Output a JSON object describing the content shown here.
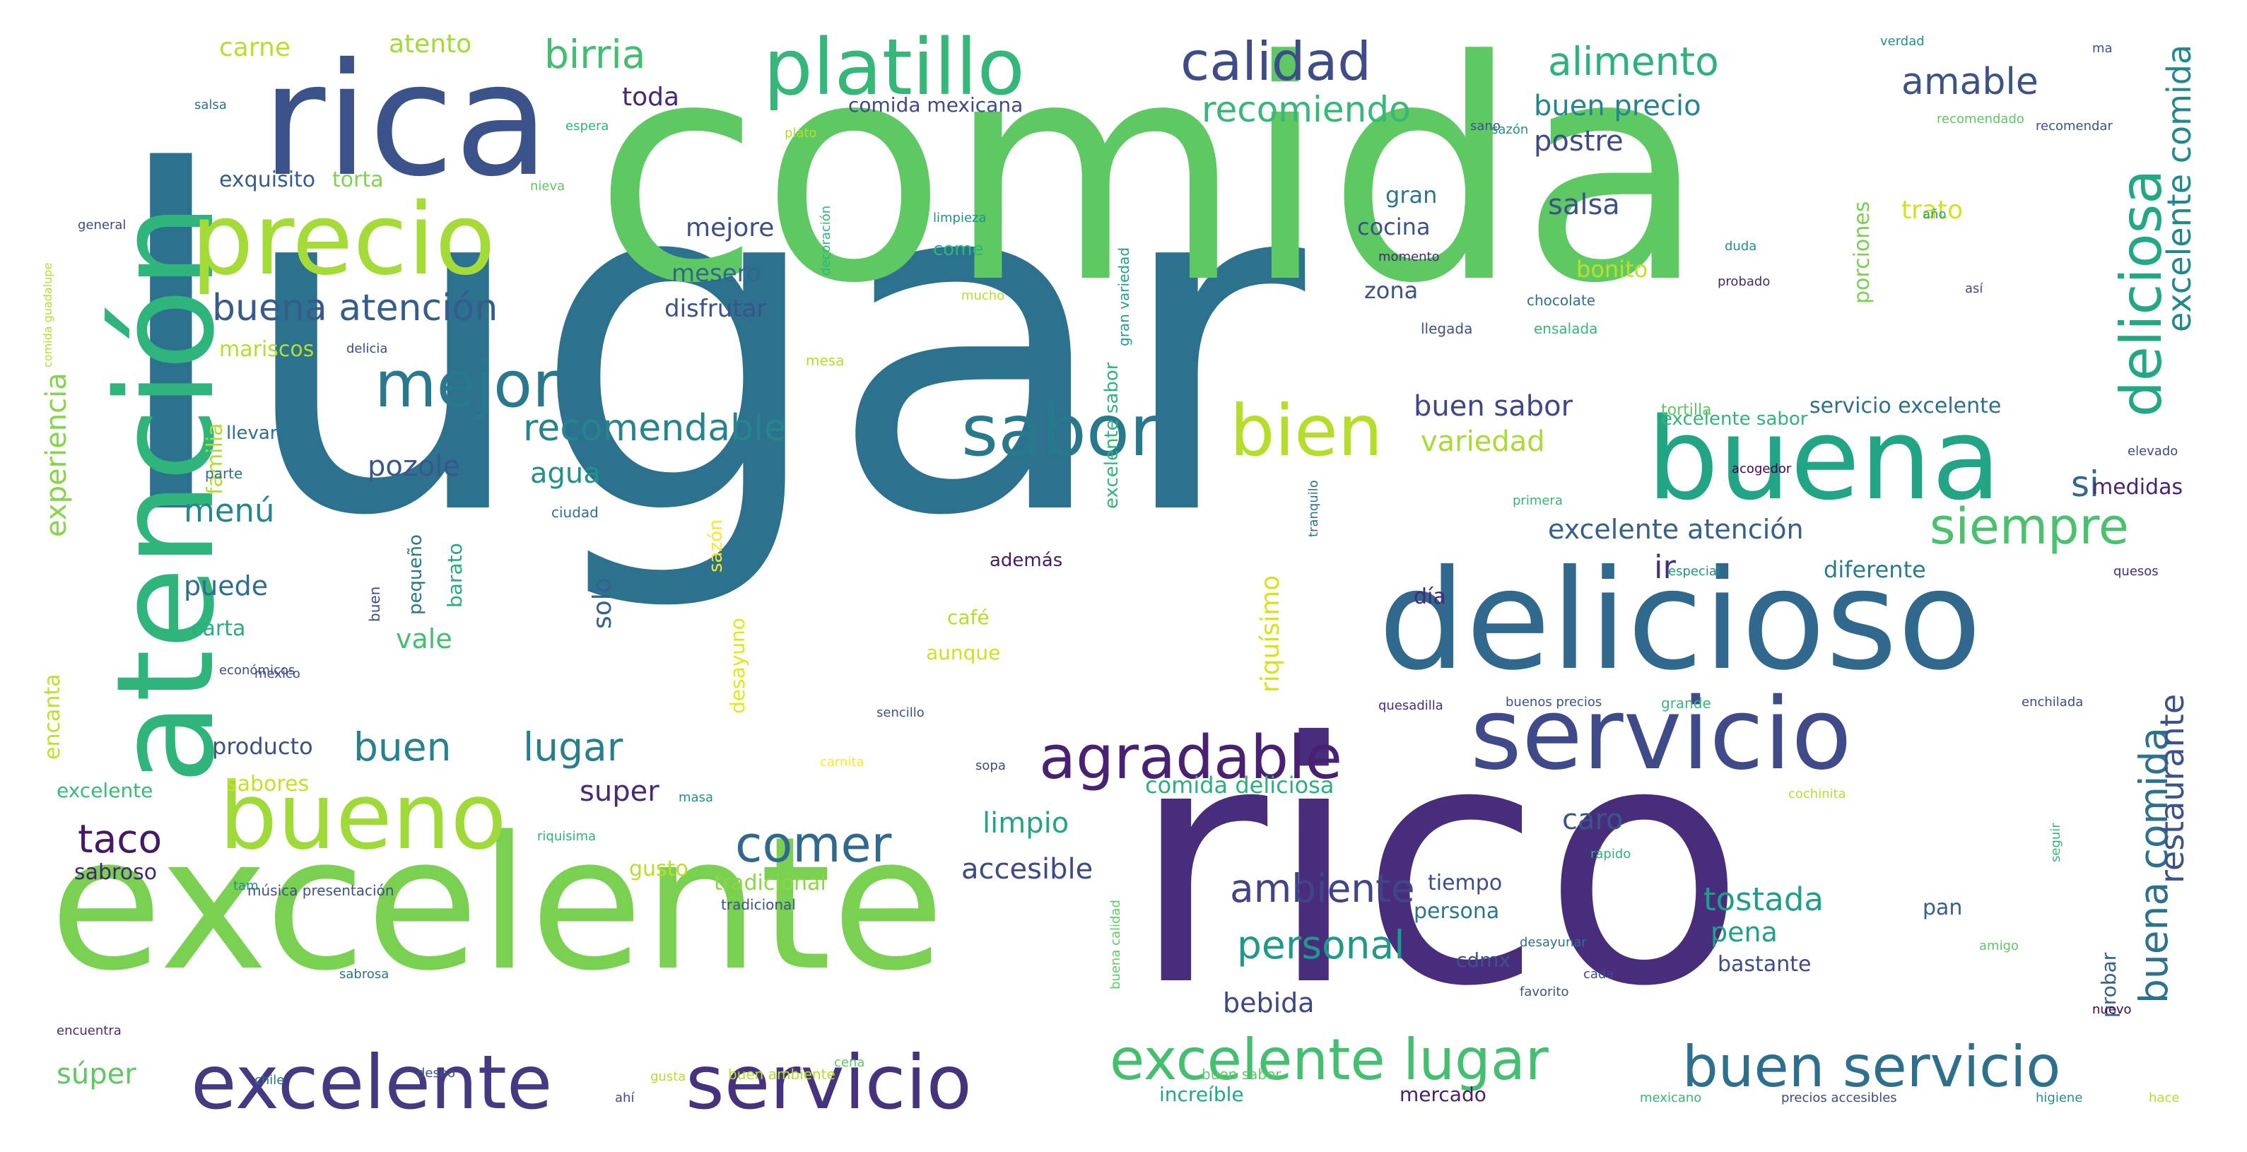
{
  "words": [
    {
      "text": "lugar",
      "color": "#2c728e"
    },
    {
      "text": "comida",
      "color": "#5ec962"
    },
    {
      "text": "rico",
      "color": "#472d7b"
    },
    {
      "text": "excelente",
      "color": "#7ad151"
    },
    {
      "text": "delicioso",
      "color": "#31688e"
    },
    {
      "text": "rica",
      "color": "#3b528b"
    },
    {
      "text": "atención",
      "color": "#2fb47c"
    },
    {
      "text": "buena",
      "color": "#21a585"
    },
    {
      "text": "servicio",
      "color": "#3e4a89"
    },
    {
      "text": "precio",
      "color": "#a5db36"
    },
    {
      "text": "platillo",
      "color": "#35b779"
    },
    {
      "text": "bueno",
      "color": "#a0da39"
    },
    {
      "text": "excelente",
      "color": "#443a83"
    },
    {
      "text": "servicio",
      "color": "#46327e"
    },
    {
      "text": "sabor",
      "color": "#29798e"
    },
    {
      "text": "bien",
      "color": "#b5de2b"
    },
    {
      "text": "mejor",
      "color": "#2a788e"
    },
    {
      "text": "agradable",
      "color": "#482173"
    },
    {
      "text": "excelente lugar",
      "color": "#44bf70"
    },
    {
      "text": "buen servicio",
      "color": "#2d708e"
    },
    {
      "text": "calidad",
      "color": "#3e4c8a"
    },
    {
      "text": "deliciosa",
      "color": "#22a884"
    },
    {
      "text": "buena comida",
      "color": "#2c728e"
    },
    {
      "text": "siempre",
      "color": "#4ac16d"
    },
    {
      "text": "buena atención",
      "color": "#365c8d"
    },
    {
      "text": "recomendable",
      "color": "#25848e"
    },
    {
      "text": "comer",
      "color": "#31688e"
    },
    {
      "text": "ambiente",
      "color": "#414487"
    },
    {
      "text": "personal",
      "color": "#1f9a8a"
    },
    {
      "text": "buen",
      "color": "#26828e"
    },
    {
      "text": "lugar",
      "color": "#277f8e"
    },
    {
      "text": "taco",
      "color": "#481769"
    },
    {
      "text": "birria",
      "color": "#42be71"
    },
    {
      "text": "alimento",
      "color": "#2db27d"
    },
    {
      "text": "recomiendo",
      "color": "#37b878"
    },
    {
      "text": "amable",
      "color": "#3b528b"
    },
    {
      "text": "excelente comida",
      "color": "#23888e"
    },
    {
      "text": "restaurante",
      "color": "#3b528b"
    },
    {
      "text": "experiencia",
      "color": "#86d549"
    },
    {
      "text": "buen precio",
      "color": "#25858e"
    },
    {
      "text": "postre",
      "color": "#3e4a89"
    },
    {
      "text": "buen sabor",
      "color": "#404688"
    },
    {
      "text": "variedad",
      "color": "#a8db34"
    },
    {
      "text": "excelente atención",
      "color": "#355f8d"
    },
    {
      "text": "salsa",
      "color": "#3b528b"
    },
    {
      "text": "menú",
      "color": "#24878e"
    },
    {
      "text": "pozole",
      "color": "#38588c"
    },
    {
      "text": "agua",
      "color": "#21918c"
    },
    {
      "text": "si",
      "color": "#31688e"
    },
    {
      "text": "ir",
      "color": "#472f7d"
    },
    {
      "text": "super",
      "color": "#482878"
    },
    {
      "text": "limpio",
      "color": "#21a685"
    },
    {
      "text": "accesible",
      "color": "#3e4989"
    },
    {
      "text": "tostada",
      "color": "#1f9e89"
    },
    {
      "text": "pena",
      "color": "#1fa088"
    },
    {
      "text": "caro",
      "color": "#39568c"
    },
    {
      "text": "bebida",
      "color": "#3f4788"
    },
    {
      "text": "súper",
      "color": "#5ec962"
    },
    {
      "text": "carne",
      "color": "#b8de29"
    },
    {
      "text": "atento",
      "color": "#a2da37"
    },
    {
      "text": "toda",
      "color": "#482677"
    },
    {
      "text": "mejore",
      "color": "#3c4f8a"
    },
    {
      "text": "mesero",
      "color": "#31678e"
    },
    {
      "text": "disfrutar",
      "color": "#3b528b"
    },
    {
      "text": "exquisito",
      "color": "#365d8d"
    },
    {
      "text": "torta",
      "color": "#7fd34e"
    },
    {
      "text": "puede",
      "color": "#2e6e8e"
    },
    {
      "text": "vale",
      "color": "#44bf70"
    },
    {
      "text": "solo",
      "color": "#33638d"
    },
    {
      "text": "riquísimo",
      "color": "#d8e219"
    },
    {
      "text": "producto",
      "color": "#3d4e8a"
    },
    {
      "text": "sabores",
      "color": "#c8e020"
    },
    {
      "text": "comida deliciosa",
      "color": "#2ab07f"
    },
    {
      "text": "comida mexicana",
      "color": "#3e4a89"
    },
    {
      "text": "gran",
      "color": "#2a768e"
    },
    {
      "text": "cocina",
      "color": "#3c508b"
    },
    {
      "text": "zona",
      "color": "#3b528b"
    },
    {
      "text": "bonito",
      "color": "#bddf26"
    },
    {
      "text": "trato",
      "color": "#d2e21b"
    },
    {
      "text": "porciones",
      "color": "#7ad151"
    },
    {
      "text": "diferente",
      "color": "#287d8e"
    },
    {
      "text": "servicio excelente",
      "color": "#2e6f8e"
    },
    {
      "text": "medidas",
      "color": "#482475"
    },
    {
      "text": "mariscos",
      "color": "#b4de2c"
    },
    {
      "text": "familia",
      "color": "#b0dd2f"
    },
    {
      "text": "carta",
      "color": "#27ad81"
    },
    {
      "text": "encanta",
      "color": "#c0df25"
    },
    {
      "text": "excelente",
      "color": "#3aba76"
    },
    {
      "text": "sabroso",
      "color": "#482475"
    },
    {
      "text": "gusto",
      "color": "#bade28"
    },
    {
      "text": "tradicional",
      "color": "#8bd646"
    },
    {
      "text": "tiempo",
      "color": "#3e4c8a"
    },
    {
      "text": "persona",
      "color": "#2b758e"
    },
    {
      "text": "pan",
      "color": "#34608d"
    },
    {
      "text": "bastante",
      "color": "#3d4d8a"
    },
    {
      "text": "probar",
      "color": "#34618d"
    },
    {
      "text": "mercado",
      "color": "#482071"
    },
    {
      "text": "increíble",
      "color": "#22a785"
    },
    {
      "text": "cdmx",
      "color": "#3b528b"
    },
    {
      "text": "café",
      "color": "#b5de2b"
    },
    {
      "text": "aunque",
      "color": "#d0e11c"
    },
    {
      "text": "desayuno",
      "color": "#e5e419"
    },
    {
      "text": "barato",
      "color": "#25ab82"
    },
    {
      "text": "pequeño",
      "color": "#2a778e"
    },
    {
      "text": "además",
      "color": "#481a6c"
    },
    {
      "text": "día",
      "color": "#482878"
    },
    {
      "text": "come",
      "color": "#31b57b"
    },
    {
      "text": "llevar",
      "color": "#2e6e8e"
    },
    {
      "text": "sazón",
      "color": "#fde725"
    },
    {
      "text": "buen",
      "color": "#3e4a89"
    },
    {
      "text": "ciudad",
      "color": "#2c728e"
    },
    {
      "text": "música presentación",
      "color": "#3b528b"
    },
    {
      "text": "tradicional",
      "color": "#3b528b"
    },
    {
      "text": "buen sabor",
      "color": "#5ec962"
    },
    {
      "text": "parte",
      "color": "#2c728e"
    },
    {
      "text": "buen ambiente",
      "color": "#b5de2b"
    },
    {
      "text": "limpieza",
      "color": "#21918c"
    },
    {
      "text": "excelente sabor",
      "color": "#2fb47c"
    },
    {
      "text": "gran variedad",
      "color": "#1f9e89"
    },
    {
      "text": "chocolate",
      "color": "#2c728e"
    },
    {
      "text": "ensalada",
      "color": "#35b779"
    },
    {
      "text": "quesadilla",
      "color": "#472d7b"
    },
    {
      "text": "buenos precios",
      "color": "#3b528b"
    },
    {
      "text": "grande",
      "color": "#35b779"
    },
    {
      "text": "enchilada",
      "color": "#3e4a89"
    },
    {
      "text": "primera",
      "color": "#35b779"
    },
    {
      "text": "especial",
      "color": "#21918c"
    },
    {
      "text": "servicio",
      "color": "#2fb47c"
    },
    {
      "text": "elevado",
      "color": "#3e4a89"
    },
    {
      "text": "acogedor",
      "color": "#440154"
    },
    {
      "text": "quesos",
      "color": "#472d7b"
    },
    {
      "text": "tortilla",
      "color": "#5ec962"
    },
    {
      "text": "duda",
      "color": "#21918c"
    },
    {
      "text": "probado",
      "color": "#482878"
    },
    {
      "text": "año",
      "color": "#1f9e89"
    },
    {
      "text": "así",
      "color": "#3e4a89"
    },
    {
      "text": "recomendado",
      "color": "#5ec962"
    },
    {
      "text": "verdad",
      "color": "#21918c"
    },
    {
      "text": "ma",
      "color": "#3b528b"
    },
    {
      "text": "sano",
      "color": "#3b528b"
    },
    {
      "text": "mesa",
      "color": "#b5de2b"
    },
    {
      "text": "llegada",
      "color": "#3b528b"
    },
    {
      "text": "momento",
      "color": "#482878"
    },
    {
      "text": "mucho",
      "color": "#b5de2b"
    },
    {
      "text": "tranquilo",
      "color": "#2c728e"
    },
    {
      "text": "mexicano",
      "color": "#35b779"
    },
    {
      "text": "precios accesibles",
      "color": "#3e4a89"
    },
    {
      "text": "higiene",
      "color": "#21918c"
    },
    {
      "text": "hace",
      "color": "#b5de2b"
    },
    {
      "text": "desayunar",
      "color": "#2c728e"
    },
    {
      "text": "amigo",
      "color": "#5ec962"
    },
    {
      "text": "favorito",
      "color": "#3b528b"
    },
    {
      "text": "cada",
      "color": "#3e4a89"
    },
    {
      "text": "nuevo",
      "color": "#440154"
    },
    {
      "text": "seguir",
      "color": "#35b779"
    },
    {
      "text": "cochinita",
      "color": "#b5de2b"
    },
    {
      "text": "rápido",
      "color": "#2fb47c"
    },
    {
      "text": "buena calidad",
      "color": "#5ec962"
    },
    {
      "text": "deseo",
      "color": "#3b528b"
    },
    {
      "text": "gusta",
      "color": "#b5de2b"
    },
    {
      "text": "tam",
      "color": "#21918c"
    },
    {
      "text": "chile",
      "color": "#2c728e"
    },
    {
      "text": "sabrosa",
      "color": "#2c728e"
    },
    {
      "text": "riquisima",
      "color": "#2fb47c"
    },
    {
      "text": "sopa",
      "color": "#3e4a89"
    },
    {
      "text": "encuentra",
      "color": "#472d7b"
    },
    {
      "text": "general",
      "color": "#3e4a89"
    },
    {
      "text": "salsa",
      "color": "#2c728e"
    },
    {
      "text": "nieva",
      "color": "#5ec962"
    },
    {
      "text": "plato",
      "color": "#b5de2b"
    },
    {
      "text": "espera",
      "color": "#2fb47c"
    },
    {
      "text": "comida guadalupe",
      "color": "#b5de2b"
    },
    {
      "text": "decoración",
      "color": "#2fb47c"
    },
    {
      "text": "delicia",
      "color": "#3e4a89"
    },
    {
      "text": "recomendar",
      "color": "#3b528b"
    },
    {
      "text": "sazón",
      "color": "#21918c"
    },
    {
      "text": "mexico",
      "color": "#3b528b"
    },
    {
      "text": "ahí",
      "color": "#3e4a89"
    },
    {
      "text": "carnita",
      "color": "#fde725"
    },
    {
      "text": "cena",
      "color": "#5ec962"
    },
    {
      "text": "masa",
      "color": "#21918c"
    },
    {
      "text": "sencillo",
      "color": "#3b528b"
    },
    {
      "text": "económicos",
      "color": "#3e4a89"
    }
  ]
}
